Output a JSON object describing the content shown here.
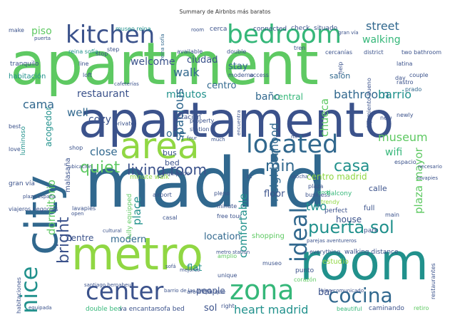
{
  "title": "Summary de Airbnbs más baratos",
  "palette": {
    "background": "#ffffff",
    "viridis": [
      "#440154",
      "#3b528b",
      "#31688e",
      "#21918c",
      "#35b779",
      "#5ec962",
      "#90d743",
      "#fde725"
    ]
  },
  "words": [
    "apartment",
    "apartamento",
    "madrid",
    "metro",
    "room",
    "city",
    "area",
    "kitchen",
    "bedroom",
    "located",
    "center",
    "zona",
    "cocina",
    "nice",
    "ideal",
    "puerta sol",
    "quiet",
    "living room",
    "min",
    "casa",
    "street",
    "welcome",
    "heart madrid",
    "bright",
    "dormitorio",
    "piso",
    "walk",
    "cama",
    "restaurant",
    "minutos",
    "centro",
    "baño",
    "central",
    "bathroom",
    "barrio",
    "museum",
    "wifi",
    "chueca",
    "spacious",
    "cozy",
    "close",
    "bus",
    "bed",
    "one",
    "two",
    "plaza mayor",
    "calle",
    "house",
    "neighborhood",
    "comfortable",
    "modern",
    "location",
    "centre",
    "place",
    "sol",
    "people",
    "bar",
    "flat",
    "walking",
    "stay",
    "ciudad",
    "salón",
    "well",
    "centro madrid",
    "floor",
    "equipado",
    "minute walk",
    "fully equipped",
    "airport",
    "casal",
    "pleno",
    "free tour",
    "minute",
    "business",
    "good",
    "full",
    "balcony",
    "trendy",
    "perfect",
    "park",
    "main",
    "corazón",
    "estudio",
    "museo",
    "metro station",
    "amplio",
    "sofá",
    "mejores",
    "punto",
    "unique",
    "around",
    "parque",
    "right",
    "caminando",
    "retiro",
    "beautiful",
    "double bed",
    "va encantar",
    "sofa bed",
    "restaurantes",
    "walking distance",
    "everything",
    "plaza",
    "shopping",
    "estación",
    "lavapiés",
    "malasaña",
    "gran vía",
    "viajeros negocios",
    "habitaciones",
    "habitación",
    "acogedor",
    "luminoso",
    "reina sofía",
    "santiago bernabeu",
    "museo reina",
    "check",
    "situado",
    "connected",
    "cerca",
    "district",
    "two bathroom",
    "latina",
    "rastro",
    "prado",
    "couple",
    "day",
    "tren",
    "cercanías",
    "double",
    "available",
    "moderno",
    "access",
    "help",
    "line",
    "loft",
    "step",
    "tranquilo",
    "make",
    "best",
    "love",
    "shop",
    "stop",
    "cultural",
    "open",
    "private",
    "large",
    "property",
    "station",
    "four",
    "much",
    "new",
    "newly",
    "mi",
    "encuentra",
    "alojamiento bueno",
    "espacio",
    "atocha",
    "11",
    "necesario",
    "room",
    "puerta",
    "gran vía",
    "reina sofía",
    "lavapies",
    "plaza españa",
    "bien comunicado",
    "ubicación",
    "cafeterías",
    "barrio de las letras",
    "parejas aventureros",
    "equipada",
    "dormitorios",
    "bastante",
    "cubierta",
    "mucho"
  ]
}
